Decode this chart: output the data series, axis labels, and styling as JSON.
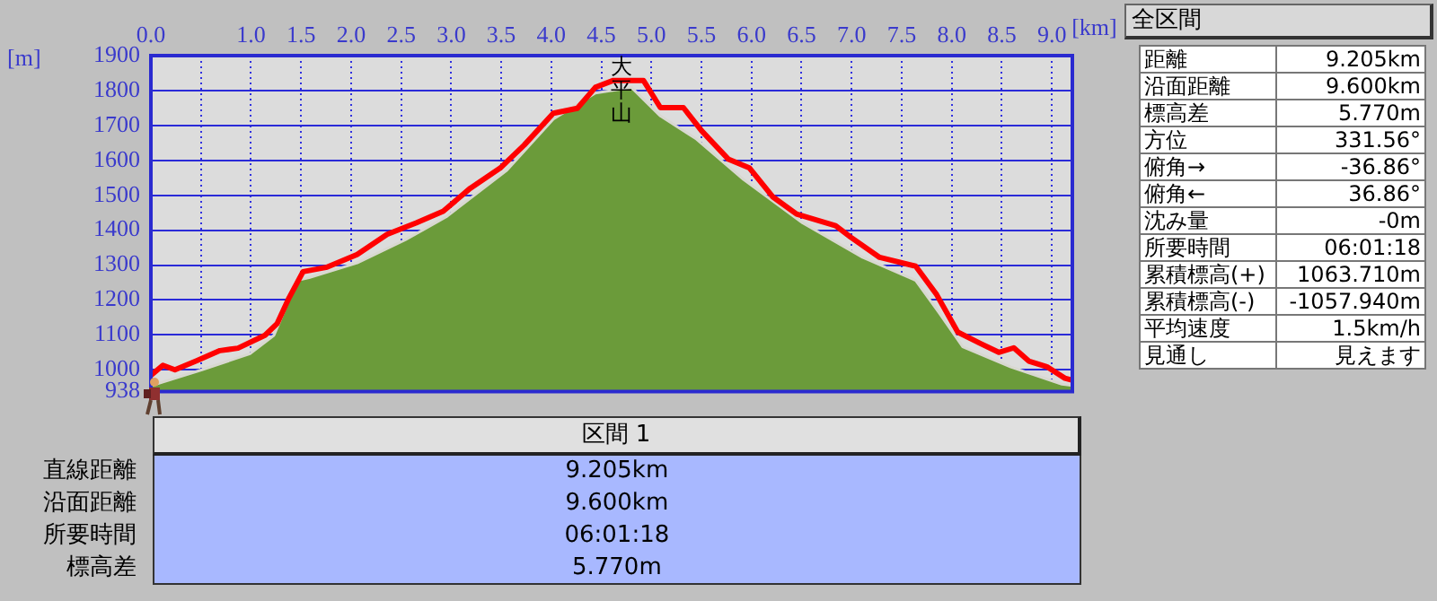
{
  "chart_data": [
    {
      "type": "area",
      "xlabel": "[km]",
      "ylabel": "[m]",
      "xlim": [
        0,
        9.205
      ],
      "ylim": [
        938,
        1900
      ],
      "xticks": [
        {
          "value": 0,
          "label": "0.0"
        },
        {
          "value": 0.5,
          "label": null
        },
        {
          "value": 1,
          "label": "1.0"
        },
        {
          "value": 1.5,
          "label": "1.5"
        },
        {
          "value": 2,
          "label": "2.0"
        },
        {
          "value": 2.5,
          "label": "2.5"
        },
        {
          "value": 3,
          "label": "3.0"
        },
        {
          "value": 3.5,
          "label": "3.5"
        },
        {
          "value": 4,
          "label": "4.0"
        },
        {
          "value": 4.5,
          "label": "4.5"
        },
        {
          "value": 5,
          "label": "5.0"
        },
        {
          "value": 5.5,
          "label": "5.5"
        },
        {
          "value": 6,
          "label": "6.0"
        },
        {
          "value": 6.5,
          "label": "6.5"
        },
        {
          "value": 7,
          "label": "7.0"
        },
        {
          "value": 7.5,
          "label": "7.5"
        },
        {
          "value": 8,
          "label": "8.0"
        },
        {
          "value": 8.5,
          "label": "8.5"
        },
        {
          "value": 9,
          "label": "9.0"
        }
      ],
      "yticks": [
        938,
        1000,
        1100,
        1200,
        1300,
        1400,
        1500,
        1600,
        1700,
        1800,
        1900
      ],
      "grid": true,
      "series": [
        {
          "type": "area",
          "color": "#6b9b3a",
          "x": [
            0,
            0.51,
            0.99,
            1.23,
            1.46,
            1.58,
            2.06,
            2.54,
            2.95,
            3.55,
            4.02,
            4.44,
            4.8,
            5.09,
            5.45,
            5.92,
            6.51,
            7.11,
            7.64,
            7.87,
            8.11,
            8.59,
            9.1,
            9.205
          ],
          "values": [
            954,
            1000,
            1046,
            1099,
            1256,
            1264,
            1306,
            1372,
            1438,
            1570,
            1718,
            1793,
            1809,
            1727,
            1661,
            1545,
            1421,
            1322,
            1256,
            1165,
            1066,
            1008,
            959,
            955
          ]
        },
        {
          "type": "line",
          "color": "#ff0000",
          "x": [
            0,
            0.12,
            0.24,
            0.45,
            0.69,
            0.87,
            1.14,
            1.26,
            1.38,
            1.52,
            1.76,
            2.06,
            2.36,
            2.65,
            2.92,
            3.19,
            3.49,
            3.73,
            4.02,
            4.26,
            4.44,
            4.62,
            4.92,
            5.09,
            5.32,
            5.5,
            5.77,
            5.98,
            6.21,
            6.45,
            6.84,
            6.99,
            7.28,
            7.64,
            7.85,
            8.06,
            8.29,
            8.47,
            8.62,
            8.77,
            8.95,
            9.13,
            9.205
          ],
          "values": [
            984,
            1013,
            1000,
            1025,
            1055,
            1062,
            1099,
            1132,
            1206,
            1281,
            1294,
            1330,
            1388,
            1421,
            1454,
            1520,
            1578,
            1644,
            1735,
            1749,
            1809,
            1829,
            1829,
            1751,
            1751,
            1685,
            1603,
            1578,
            1496,
            1446,
            1413,
            1380,
            1322,
            1297,
            1215,
            1108,
            1075,
            1050,
            1063,
            1025,
            1009,
            976,
            970
          ]
        }
      ],
      "annotations": [
        {
          "text": "大平山",
          "x": 4.7,
          "y": 1829
        }
      ]
    },
    {
      "type": "other",
      "title": "全区間",
      "annotations": [
        "距離",
        "9.205km",
        "沿面距離",
        "9.600km",
        "標高差",
        "5.770m",
        "方位",
        "331.56°",
        "俯角→",
        "-36.86°",
        "俯角←",
        "36.86°",
        "沈み量",
        "-0m",
        "所要時間",
        "06:01:18",
        "累積標高(+)",
        "1063.710m",
        "累積標高(-)",
        "-1057.940m",
        "平均速度",
        "1.5km/h",
        "見通し",
        "見えます"
      ]
    },
    {
      "type": "other",
      "title": "区間 1",
      "annotations": [
        "直線距離",
        "9.205km",
        "沿面距離",
        "9.600km",
        "所要時間",
        "06:01:18",
        "標高差",
        "5.770m"
      ]
    }
  ]
}
